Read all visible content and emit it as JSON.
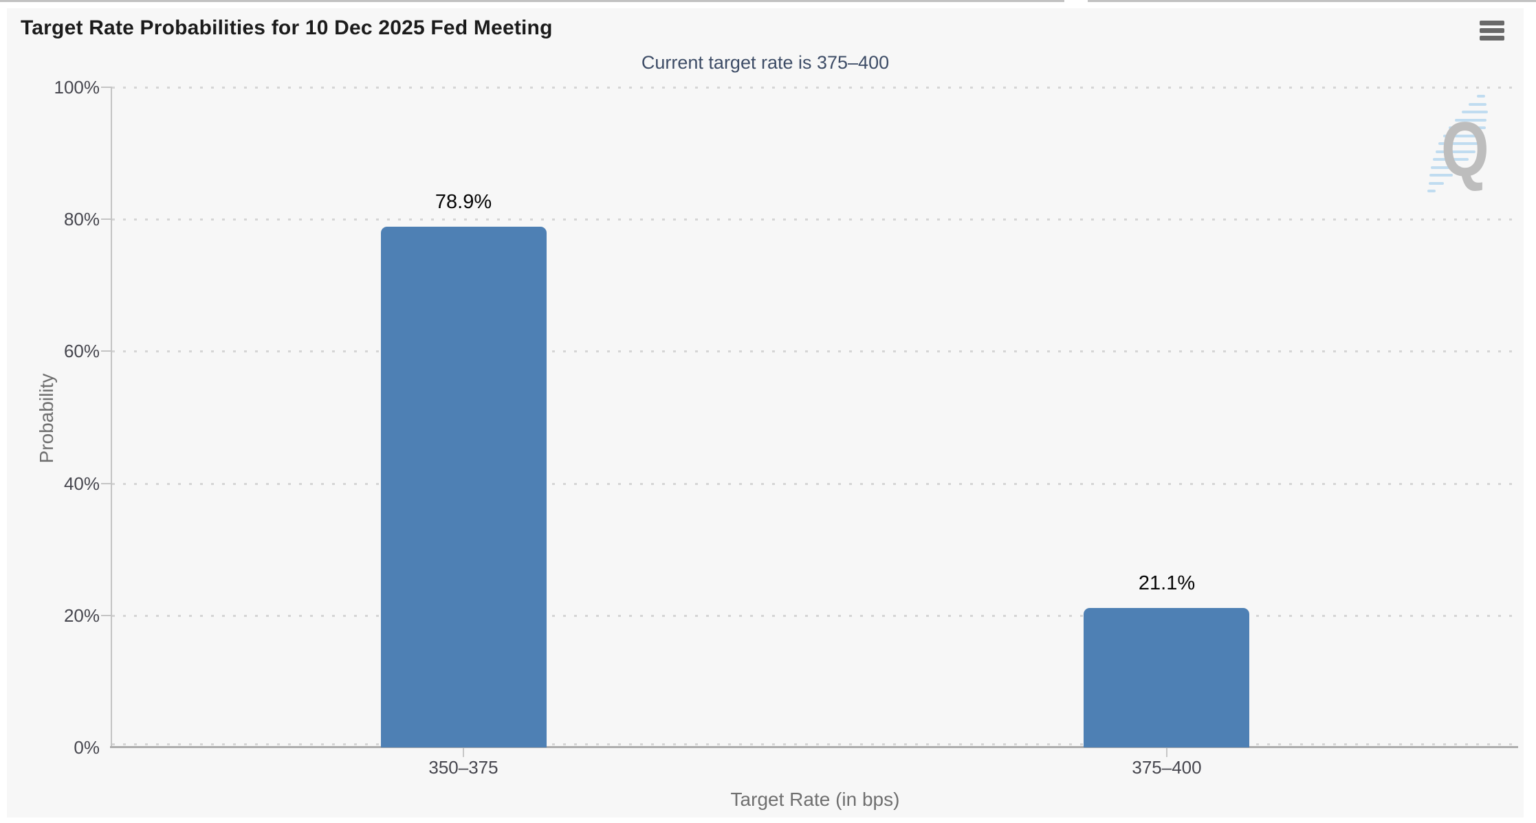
{
  "header": {
    "menu_icon": "hamburger-menu-icon"
  },
  "watermark": {
    "letter": "Q"
  },
  "chart_data": {
    "type": "bar",
    "title": "Target Rate Probabilities for 10 Dec 2025 Fed Meeting",
    "subtitle": "Current target rate is 375–400",
    "categories": [
      "350–375",
      "375–400"
    ],
    "values": [
      78.9,
      21.1
    ],
    "value_labels": [
      "78.9%",
      "21.1%"
    ],
    "xlabel": "Target Rate (in bps)",
    "ylabel": "Probability",
    "ylim": [
      0,
      100
    ],
    "ytick_labels": [
      "0%",
      "20%",
      "40%",
      "60%",
      "80%",
      "100%"
    ],
    "grid": "dotted horizontal gridlines",
    "legend": "none",
    "bar_color": "#4e80b4"
  }
}
